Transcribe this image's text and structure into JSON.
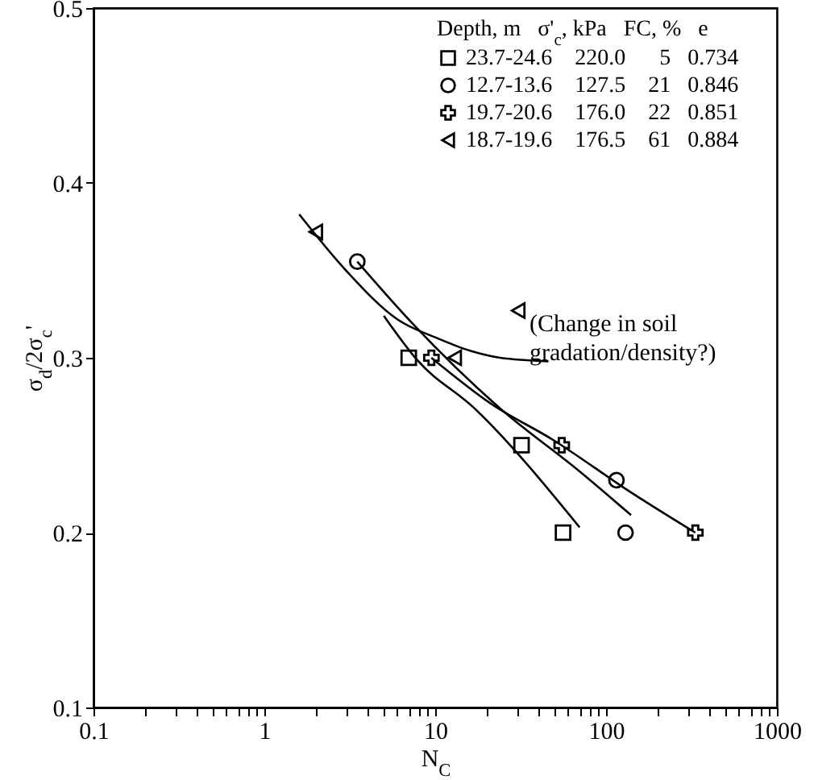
{
  "chart_data": {
    "type": "scatter",
    "xlabel": "N$_{C}$",
    "ylabel": "σ$_{d}$/2σ$_{c}$'",
    "legend_title": "Depth, m   σ'$_{c}$, kPa   FC, %   e",
    "legend": "top right",
    "grid": false,
    "log": "x",
    "xlim": [
      0.1,
      1000
    ],
    "ylim": [
      0.1,
      0.5
    ],
    "xticks": [
      0.1,
      {
        "value": 0.2,
        "label": null
      },
      {
        "value": 0.3,
        "label": null
      },
      {
        "value": 0.4,
        "label": null
      },
      {
        "value": 0.5,
        "label": null
      },
      {
        "value": 0.6,
        "label": null
      },
      {
        "value": 0.7,
        "label": null
      },
      {
        "value": 0.8,
        "label": null
      },
      {
        "value": 0.9,
        "label": null
      },
      1,
      {
        "value": 2,
        "label": null
      },
      {
        "value": 3,
        "label": null
      },
      {
        "value": 4,
        "label": null
      },
      {
        "value": 5,
        "label": null
      },
      {
        "value": 6,
        "label": null
      },
      {
        "value": 7,
        "label": null
      },
      {
        "value": 8,
        "label": null
      },
      {
        "value": 9,
        "label": null
      },
      10,
      {
        "value": 20,
        "label": null
      },
      {
        "value": 30,
        "label": null
      },
      {
        "value": 40,
        "label": null
      },
      {
        "value": 50,
        "label": null
      },
      {
        "value": 60,
        "label": null
      },
      {
        "value": 70,
        "label": null
      },
      {
        "value": 80,
        "label": null
      },
      {
        "value": 90,
        "label": null
      },
      100,
      {
        "value": 200,
        "label": null
      },
      {
        "value": 300,
        "label": null
      },
      {
        "value": 400,
        "label": null
      },
      {
        "value": 500,
        "label": null
      },
      {
        "value": 600,
        "label": null
      },
      {
        "value": 700,
        "label": null
      },
      {
        "value": 800,
        "label": null
      },
      {
        "value": 900,
        "label": null
      },
      1000
    ],
    "yticks": [
      0.1,
      0.2,
      0.3,
      0.4,
      0.5
    ],
    "annotations": [
      {
        "text": "(Change in soil\ngradation/density?)",
        "x": 30.6,
        "y": 0.327
      }
    ],
    "series": [
      {
        "name": "23.7-24.6    220.0      5   0.734",
        "marker": "square",
        "color": "#000000",
        "x": [
          7,
          32,
          56
        ],
        "values": [
          0.3,
          0.25,
          0.2
        ]
      },
      {
        "name": "12.7-13.6    127.5    21   0.846",
        "marker": "circle",
        "color": "#000000",
        "x": [
          3.5,
          115,
          130
        ],
        "values": [
          0.355,
          0.23,
          0.2
        ]
      },
      {
        "name": "19.7-20.6    176.0    22   0.851",
        "marker": "cross",
        "color": "#000000",
        "x": [
          9.5,
          55,
          333
        ],
        "values": [
          0.3,
          0.25,
          0.2
        ]
      },
      {
        "name": "18.7-19.6    176.5    61   0.884",
        "marker": "triangle",
        "color": "#000000",
        "x": [
          2,
          13,
          30.6
        ],
        "values": [
          0.372,
          0.3,
          0.327
        ]
      },
      {
        "type": "line",
        "color": "#000000",
        "line_style": "solid",
        "x": [
          5,
          7.8,
          17,
          70
        ],
        "values": [
          0.324,
          0.299,
          0.271,
          0.203
        ]
      },
      {
        "type": "line",
        "color": "#000000",
        "line_style": "solid",
        "x": [
          3.5,
          7.3,
          24,
          70,
          140
        ],
        "values": [
          0.355,
          0.32,
          0.271,
          0.235,
          0.21
        ]
      },
      {
        "type": "line",
        "color": "#000000",
        "line_style": "solid",
        "x": [
          9.5,
          21,
          49,
          140,
          333
        ],
        "values": [
          0.3,
          0.274,
          0.253,
          0.223,
          0.2
        ]
      },
      {
        "type": "line",
        "color": "#000000",
        "line_style": "solid",
        "x": [
          1.6,
          3,
          6,
          10.4,
          16,
          24,
          46
        ],
        "values": [
          0.382,
          0.35,
          0.322,
          0.311,
          0.304,
          0.3,
          0.298
        ]
      }
    ]
  }
}
